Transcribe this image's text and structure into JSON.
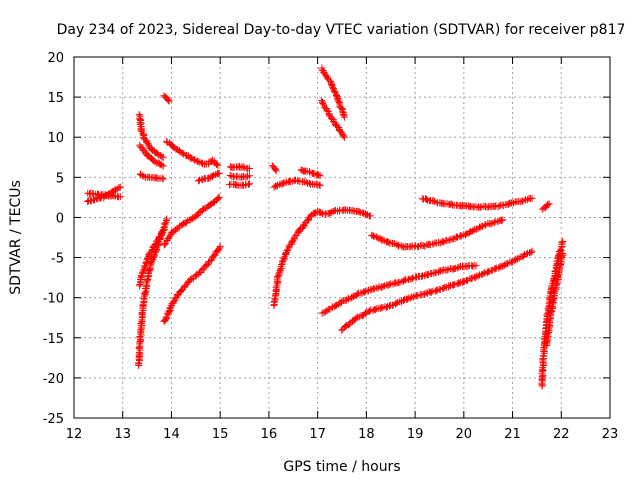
{
  "chart_data": {
    "type": "scatter",
    "title": "Day 234 of 2023, Sidereal Day-to-day VTEC variation (SDTVAR) for receiver p817",
    "xlabel": "GPS time / hours",
    "ylabel": "SDTVAR / TECUs",
    "xlim": [
      12,
      23
    ],
    "ylim": [
      -25,
      20
    ],
    "xticks": [
      "12",
      "13",
      "14",
      "15",
      "16",
      "17",
      "18",
      "19",
      "20",
      "21",
      "22",
      "23"
    ],
    "yticks": [
      "-25",
      "-20",
      "-15",
      "-10",
      "-5",
      "0",
      "5",
      "10",
      "15",
      "20"
    ],
    "grid": true,
    "marker": "+",
    "marker_color": "#ff0000",
    "series": [
      {
        "name": "seg-01",
        "x": [
          12.28,
          12.6,
          12.95
        ],
        "y": [
          2.0,
          2.5,
          3.8
        ]
      },
      {
        "name": "seg-02",
        "x": [
          12.28,
          12.6,
          12.95
        ],
        "y": [
          3.0,
          2.8,
          2.6
        ]
      },
      {
        "name": "seg-03",
        "x": [
          13.35,
          13.38,
          13.45,
          13.55,
          13.7,
          13.83
        ],
        "y": [
          12.8,
          11.0,
          9.8,
          8.8,
          8.0,
          7.5
        ]
      },
      {
        "name": "seg-04",
        "x": [
          13.35,
          13.5,
          13.65,
          13.83
        ],
        "y": [
          9.0,
          7.8,
          7.0,
          6.4
        ]
      },
      {
        "name": "seg-05",
        "x": [
          13.35,
          13.5,
          13.7,
          13.83
        ],
        "y": [
          5.4,
          5.0,
          4.9,
          4.8
        ]
      },
      {
        "name": "seg-06",
        "x": [
          13.33,
          13.36,
          13.42,
          13.5,
          13.6,
          13.75,
          13.9
        ],
        "y": [
          -18.5,
          -15.0,
          -11.0,
          -8.0,
          -5.5,
          -3.0,
          -0.2
        ]
      },
      {
        "name": "seg-07",
        "x": [
          13.35,
          13.4,
          13.48,
          13.55,
          13.65,
          13.75,
          13.85
        ],
        "y": [
          -8.5,
          -7.0,
          -5.8,
          -4.6,
          -3.5,
          -2.5,
          -1.5
        ]
      },
      {
        "name": "seg-08",
        "x": [
          13.85,
          13.95
        ],
        "y": [
          15.2,
          14.5
        ]
      },
      {
        "name": "seg-09",
        "x": [
          13.9,
          14.1,
          14.4,
          14.7,
          14.85,
          14.95
        ],
        "y": [
          9.5,
          8.5,
          7.4,
          6.6,
          7.1,
          6.5
        ]
      },
      {
        "name": "seg-10",
        "x": [
          13.85,
          14.0,
          14.2,
          14.5,
          14.7,
          14.85,
          14.98
        ],
        "y": [
          -3.5,
          -2.0,
          -1.0,
          0.2,
          1.2,
          1.8,
          2.5
        ]
      },
      {
        "name": "seg-11",
        "x": [
          13.85,
          13.92,
          14.0,
          14.15,
          14.35,
          14.6,
          14.85,
          15.0
        ],
        "y": [
          -13.0,
          -12.2,
          -11.0,
          -9.5,
          -8.0,
          -6.8,
          -5.0,
          -3.6
        ]
      },
      {
        "name": "seg-12",
        "x": [
          14.55,
          14.8,
          14.98
        ],
        "y": [
          4.6,
          5.0,
          5.5
        ]
      },
      {
        "name": "seg-13",
        "x": [
          15.2,
          15.45,
          15.6
        ],
        "y": [
          6.3,
          6.3,
          6.1
        ]
      },
      {
        "name": "seg-14",
        "x": [
          15.2,
          15.45,
          15.6
        ],
        "y": [
          5.2,
          5.0,
          5.2
        ]
      },
      {
        "name": "seg-15",
        "x": [
          15.2,
          15.45,
          15.6
        ],
        "y": [
          4.1,
          4.0,
          4.2
        ]
      },
      {
        "name": "seg-16",
        "x": [
          16.08,
          16.15
        ],
        "y": [
          6.4,
          5.8
        ]
      },
      {
        "name": "seg-17",
        "x": [
          16.1,
          16.3,
          16.55,
          16.8,
          17.05
        ],
        "y": [
          3.8,
          4.3,
          4.6,
          4.3,
          4.0
        ]
      },
      {
        "name": "seg-18",
        "x": [
          16.65,
          16.85,
          17.05
        ],
        "y": [
          5.9,
          5.6,
          5.2
        ]
      },
      {
        "name": "seg-19",
        "x": [
          16.1,
          16.2,
          16.35,
          16.55,
          16.75,
          16.9,
          17.0
        ],
        "y": [
          -11.0,
          -7.0,
          -4.5,
          -2.3,
          -0.7,
          0.4,
          0.7
        ]
      },
      {
        "name": "seg-20",
        "x": [
          17.0,
          17.15,
          17.35,
          17.55,
          17.8,
          18.08
        ],
        "y": [
          0.7,
          0.4,
          0.8,
          0.9,
          0.8,
          0.2
        ]
      },
      {
        "name": "seg-21",
        "x": [
          17.08,
          17.25,
          17.4,
          17.55
        ],
        "y": [
          18.6,
          17.0,
          15.0,
          12.5
        ]
      },
      {
        "name": "seg-22",
        "x": [
          17.08,
          17.25,
          17.4,
          17.55
        ],
        "y": [
          14.5,
          12.8,
          11.3,
          10.0
        ]
      },
      {
        "name": "seg-23",
        "x": [
          17.1,
          17.5,
          17.85,
          18.2,
          18.6,
          19.0,
          19.5,
          20.0,
          20.25
        ],
        "y": [
          -12.0,
          -10.5,
          -9.5,
          -8.8,
          -8.2,
          -7.5,
          -6.7,
          -6.1,
          -6.0
        ]
      },
      {
        "name": "seg-24",
        "x": [
          17.5,
          17.8,
          18.1,
          18.5,
          19.0,
          19.5,
          20.0,
          20.5,
          21.0,
          21.4
        ],
        "y": [
          -14.0,
          -12.5,
          -11.6,
          -11.0,
          -9.8,
          -9.0,
          -8.0,
          -6.8,
          -5.5,
          -4.2
        ]
      },
      {
        "name": "seg-25",
        "x": [
          18.1,
          18.4,
          18.8,
          19.2,
          19.6,
          20.0,
          20.4,
          20.8
        ],
        "y": [
          -2.2,
          -3.0,
          -3.7,
          -3.5,
          -3.0,
          -2.2,
          -1.0,
          -0.3
        ]
      },
      {
        "name": "seg-26",
        "x": [
          19.15,
          19.5,
          19.9,
          20.3,
          20.7,
          21.0,
          21.4
        ],
        "y": [
          2.4,
          1.8,
          1.5,
          1.3,
          1.4,
          1.8,
          2.4
        ]
      },
      {
        "name": "seg-27",
        "x": [
          21.62,
          21.75
        ],
        "y": [
          1.0,
          1.7
        ]
      },
      {
        "name": "seg-28",
        "x": [
          21.6,
          21.65,
          21.72,
          21.8,
          21.88,
          21.95,
          22.03
        ],
        "y": [
          -21.0,
          -16.0,
          -12.0,
          -9.0,
          -6.8,
          -4.8,
          -3.0
        ]
      },
      {
        "name": "seg-29",
        "x": [
          21.7,
          21.78,
          21.86,
          21.95,
          22.03
        ],
        "y": [
          -16.0,
          -12.5,
          -9.5,
          -7.0,
          -4.5
        ]
      }
    ]
  }
}
